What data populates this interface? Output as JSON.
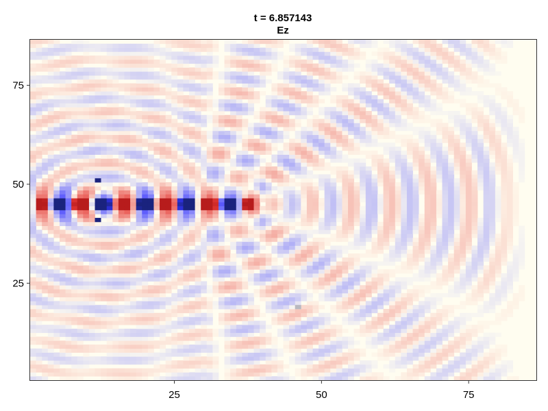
{
  "chart_data": {
    "type": "heatmap",
    "title_line1": "t = 6.857143",
    "title_line2": "Ez",
    "xlabel": "",
    "ylabel": "",
    "xlim": [
      0.5,
      86.5
    ],
    "ylim": [
      0.5,
      86.5
    ],
    "x_ticks": [
      25,
      50,
      75
    ],
    "y_ticks": [
      25,
      50,
      75
    ],
    "x_tick_labels": [
      "25",
      "50",
      "75"
    ],
    "y_tick_labels": [
      "25",
      "50",
      "75"
    ],
    "grid": false,
    "colormap": {
      "negative": "#1a237e",
      "mid_negative": "#3535ff",
      "zero": "#fffdf0",
      "positive": "#e53935",
      "mid_positive": "#b71c1c"
    },
    "field": {
      "grid_size": [
        86,
        86
      ],
      "source_row_y": 45,
      "wire_x_range": [
        2,
        38
      ],
      "wavefront_center": [
        13,
        45
      ],
      "wavelength_cells": 6.5,
      "feature_markers": [
        {
          "x": 12,
          "y": 51,
          "value": -1.0
        },
        {
          "x": 12,
          "y": 41,
          "value": -1.0
        },
        {
          "x": 46,
          "y": 19,
          "value": -0.4
        }
      ]
    }
  }
}
